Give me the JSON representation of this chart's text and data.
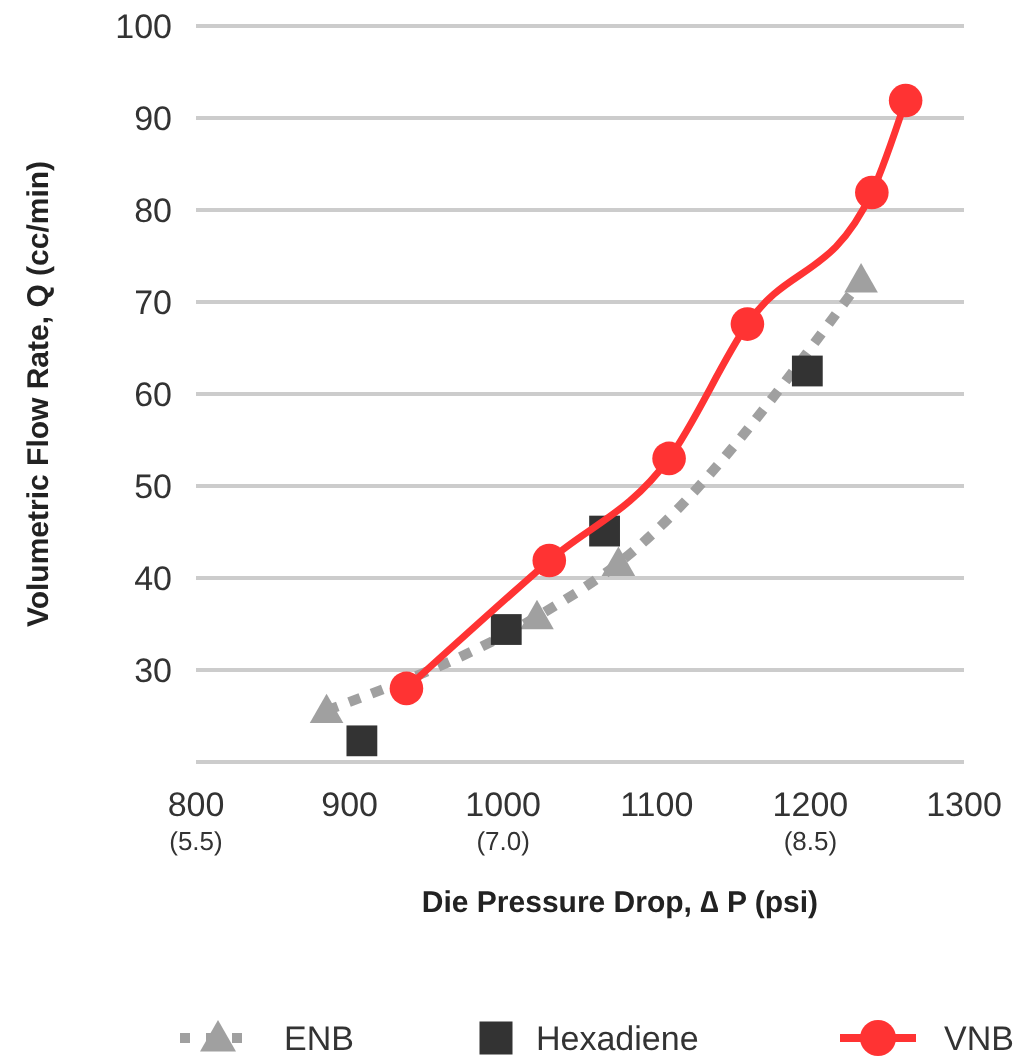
{
  "chart_data": {
    "type": "line",
    "xlabel": "Die Pressure Drop, ∆ P (psi)",
    "ylabel": "Volumetric Flow Rate, Q (cc/min)",
    "xlim": [
      800,
      1300
    ],
    "xticks": [
      800,
      900,
      1000,
      1100,
      1200,
      1300
    ],
    "x2lim": [
      5.5,
      9.25
    ],
    "x2ticks": [
      {
        "value": 5.5,
        "label": "(5.5)"
      },
      {
        "value": 7.0,
        "label": "(7.0)"
      },
      {
        "value": 8.5,
        "label": "(8.5)"
      }
    ],
    "ylim": [
      20,
      100
    ],
    "yticks": [
      {
        "value": 20,
        "label": null
      },
      30,
      40,
      50,
      60,
      70,
      80,
      90,
      100
    ],
    "grid": "y",
    "legend": "bottom",
    "series": [
      {
        "name": "ENB",
        "color": "#a0a0a0",
        "marker": "triangle",
        "line_style": "dashed",
        "x": [
          885,
          1022,
          1075,
          1233
        ],
        "values": [
          25.6,
          35.8,
          41.6,
          72.4
        ]
      },
      {
        "name": "Hexadiene",
        "type": "scatter",
        "color": "#333333",
        "marker": "square",
        "x": [
          908,
          1002,
          1066,
          1198
        ],
        "values": [
          22.3,
          34.4,
          45.1,
          62.5
        ]
      },
      {
        "name": "VNB",
        "color": "#ff3333",
        "marker": "circle",
        "line_style": "solid",
        "x": [
          937,
          1030,
          1108,
          1159,
          1240,
          1262
        ],
        "values": [
          28.0,
          41.9,
          53.0,
          67.6,
          81.9,
          91.9
        ]
      }
    ]
  }
}
